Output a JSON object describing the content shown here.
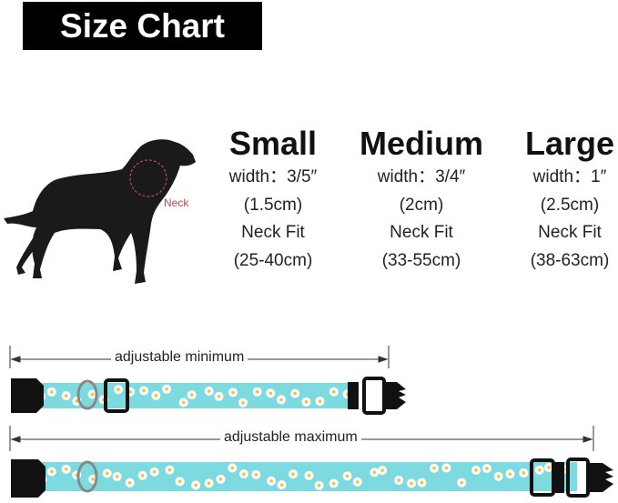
{
  "title": "Size Chart",
  "neck_label": "Neck",
  "sizes": [
    {
      "name": "Small",
      "width": "width：3/5″",
      "width_cm": "(1.5cm)",
      "fit_label": "Neck Fit",
      "fit": "(25-40cm)"
    },
    {
      "name": "Medium",
      "width": "width：3/4″",
      "width_cm": "(2cm)",
      "fit_label": "Neck Fit",
      "fit": "(33-55cm)"
    },
    {
      "name": "Large",
      "width": "width：1″",
      "width_cm": "(2.5cm)",
      "fit_label": "Neck Fit",
      "fit": "(38-63cm)"
    }
  ],
  "collars": {
    "minimum_label": "adjustable minimum",
    "maximum_label": "adjustable maximum",
    "strap_color": "#7ddbe0",
    "buckle_color": "#111111",
    "pattern": "daisy"
  }
}
